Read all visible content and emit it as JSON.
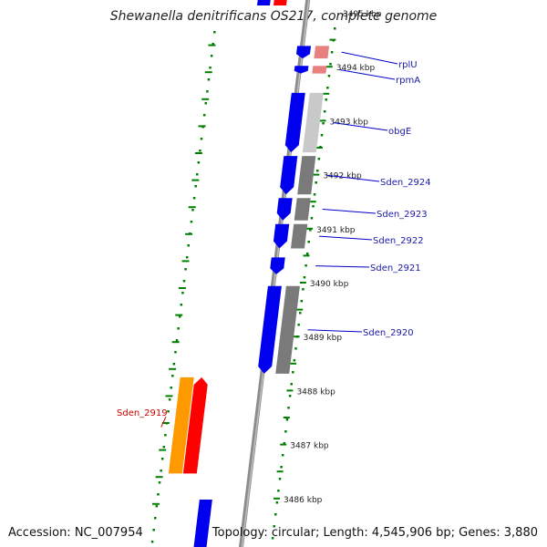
{
  "title": "Shewanella denitrificans OS217, complete genome",
  "accession_label": "Accession: NC_007954",
  "summary_label": "Topology: circular; Length: 4,545,906 bp; Genes: 3,880",
  "ticks": [
    {
      "label": "3495 kbp",
      "kbp": 3495
    },
    {
      "label": "3494 kbp",
      "kbp": 3494
    },
    {
      "label": "3493 kbp",
      "kbp": 3493
    },
    {
      "label": "3492 kbp",
      "kbp": 3492
    },
    {
      "label": "3491 kbp",
      "kbp": 3491
    },
    {
      "label": "3490 kbp",
      "kbp": 3490
    },
    {
      "label": "3489 kbp",
      "kbp": 3489
    },
    {
      "label": "3488 kbp",
      "kbp": 3488
    },
    {
      "label": "3487 kbp",
      "kbp": 3487
    },
    {
      "label": "3486 kbp",
      "kbp": 3486
    }
  ],
  "features": [
    {
      "id": "rplU",
      "label": "rplU",
      "strand": "-",
      "start_kbp": 3494.42,
      "end_kbp": 3494.12,
      "cds": "#0000ee",
      "gene": "#e88080",
      "label_color": "#1a1aaa"
    },
    {
      "id": "rpmA",
      "label": "rpmA",
      "strand": "-",
      "start_kbp": 3494.05,
      "end_kbp": 3493.84,
      "cds": "#0000ee",
      "gene": "#e88080",
      "label_color": "#1a1aaa"
    },
    {
      "id": "obgE",
      "label": "obgE",
      "strand": "-",
      "start_kbp": 3493.55,
      "end_kbp": 3492.38,
      "cds": "#0000ee",
      "gene": "#c9c9c9",
      "label_color": "#1a1aaa"
    },
    {
      "id": "Sden_2924",
      "label": "Sden_2924",
      "strand": "-",
      "start_kbp": 3492.38,
      "end_kbp": 3491.6,
      "cds": "#0000ee",
      "gene": "#7a7a7a",
      "label_color": "#1a1aaa"
    },
    {
      "id": "Sden_2923",
      "label": "Sden_2923",
      "strand": "-",
      "start_kbp": 3491.6,
      "end_kbp": 3491.12,
      "cds": "#0000ee",
      "gene": "#7a7a7a",
      "label_color": "#1a1aaa"
    },
    {
      "id": "Sden_2922",
      "label": "Sden_2922",
      "strand": "-",
      "start_kbp": 3491.12,
      "end_kbp": 3490.6,
      "cds": "#0000ee",
      "gene": "#7a7a7a",
      "label_color": "#1a1aaa"
    },
    {
      "id": "Sden_2921",
      "label": "Sden_2921",
      "strand": "-",
      "start_kbp": 3490.5,
      "end_kbp": 3490.12,
      "cds": "#0000ee",
      "gene": null,
      "label_color": "#1a1aaa"
    },
    {
      "id": "Sden_2920",
      "label": "Sden_2920",
      "strand": "-",
      "start_kbp": 3489.97,
      "end_kbp": 3488.28,
      "cds": "#0000ee",
      "gene": "#7a7a7a",
      "label_color": "#1a1aaa"
    },
    {
      "id": "Sden_2919",
      "label": "Sden_2919",
      "strand": "+",
      "start_kbp": 3488.28,
      "end_kbp": 3486.43,
      "cds": "#ff0000",
      "gene": "#ff9900",
      "label_color": "#cc0000"
    }
  ],
  "backbone_color": "#8c8c8c",
  "tick_color": "#008000"
}
